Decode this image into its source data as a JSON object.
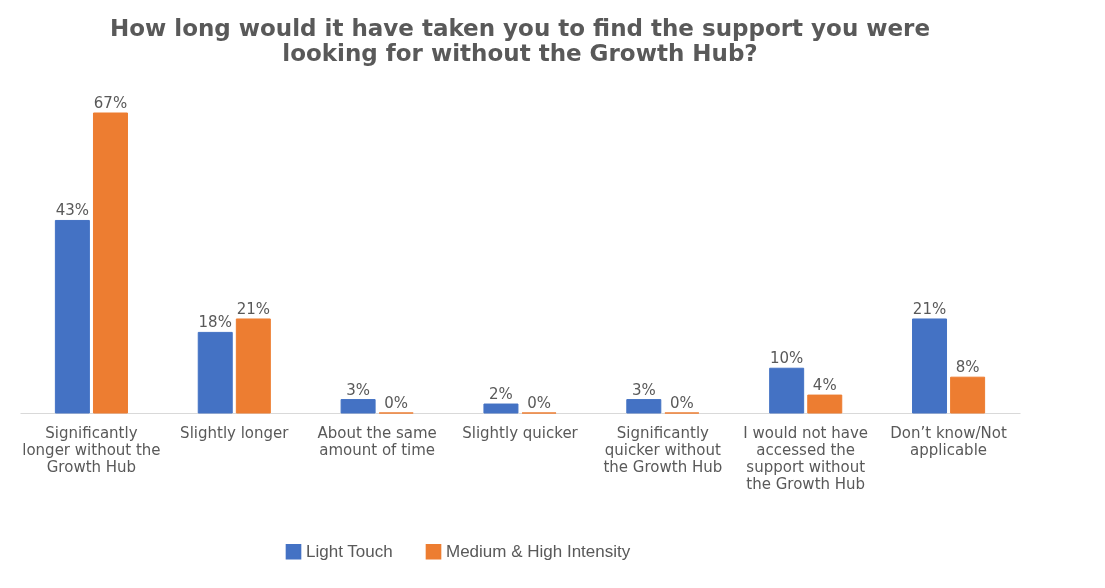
{
  "chart_data": {
    "type": "bar",
    "title": "How long would it have taken you to find the support you were looking for without the Growth Hub?",
    "categories": [
      "Significantly longer without the Growth Hub",
      "Slightly longer",
      "About the same amount of time",
      "Slightly quicker",
      "Significantly quicker without the Growth Hub",
      "I would not have accessed the support without the Growth Hub",
      "Don’t know/Not applicable"
    ],
    "series": [
      {
        "name": "Light Touch",
        "color": "#4472c4",
        "values": [
          43,
          18,
          3,
          2,
          3,
          10,
          21
        ],
        "value_labels": [
          "43%",
          "18%",
          "3%",
          "2%",
          "3%",
          "10%",
          "21%"
        ]
      },
      {
        "name": "Medium & High Intensity",
        "color": "#ed7d31",
        "values": [
          67,
          21,
          0,
          0,
          0,
          4,
          8
        ],
        "value_labels": [
          "67%",
          "21%",
          "0%",
          "0%",
          "0%",
          "4%",
          "8%"
        ]
      }
    ],
    "legend": "bottom"
  }
}
